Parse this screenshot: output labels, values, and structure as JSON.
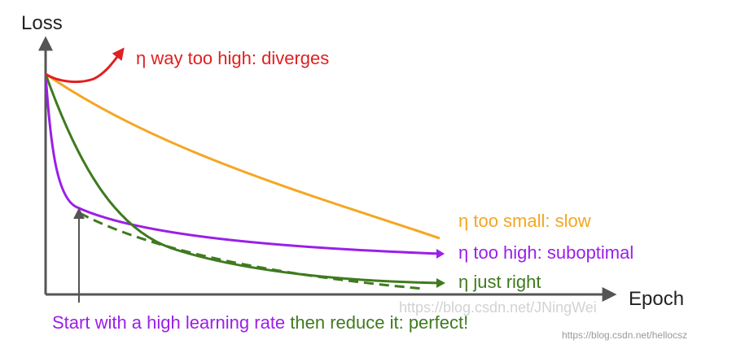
{
  "axes": {
    "y_label": "Loss",
    "x_label": "Epoch"
  },
  "curves": [
    {
      "id": "diverges",
      "label": "η way too high: diverges",
      "color": "#e02020"
    },
    {
      "id": "slow",
      "label": "η too small: slow",
      "color": "#f5a623"
    },
    {
      "id": "suboptimal",
      "label": "η too high: suboptimal",
      "color": "#9b1fe8"
    },
    {
      "id": "just_right",
      "label": "η just right",
      "color": "#3f7a1f"
    },
    {
      "id": "perfect",
      "label": "",
      "color": "#3f7a1f"
    }
  ],
  "caption": {
    "part1": "Start with a high learning rate",
    "part2": " then reduce it: perfect!",
    "part1_color": "#9b1fe8",
    "part2_color": "#3f7a1f"
  },
  "watermark": {
    "text1": "https://blog.csdn.net/JNingWei",
    "text2": "https://blog.csdn.net/hellocsz"
  }
}
